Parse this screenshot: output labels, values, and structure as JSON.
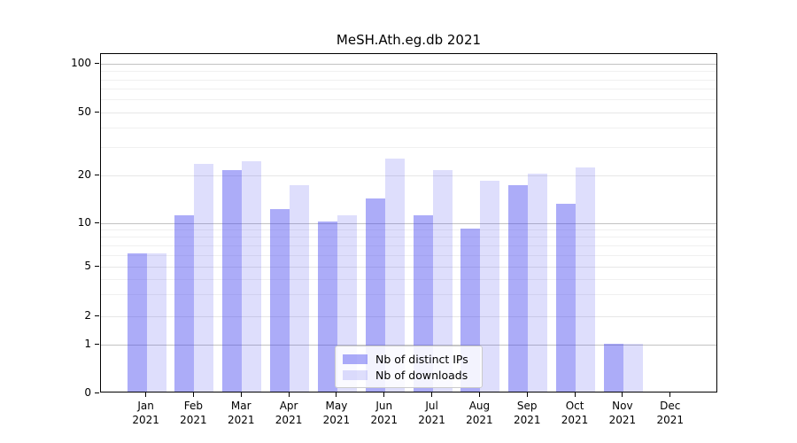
{
  "chart_data": {
    "type": "bar",
    "title": "MeSH.Ath.eg.db 2021",
    "categories": [
      "Jan",
      "Feb",
      "Mar",
      "Apr",
      "May",
      "Jun",
      "Jul",
      "Aug",
      "Sep",
      "Oct",
      "Nov",
      "Dec"
    ],
    "xtick_year": "2021",
    "series": [
      {
        "name": "Nb of distinct IPs",
        "color": "rgba(70,70,240,0.45)",
        "color_hex": "#a9a9f7",
        "values": [
          6,
          11,
          21,
          12,
          10,
          14,
          11,
          9,
          17,
          13,
          1,
          0
        ]
      },
      {
        "name": "Nb of downloads",
        "color": "rgba(70,70,240,0.18)",
        "color_hex": "#dadaf9",
        "values": [
          6,
          23,
          24,
          17,
          11,
          25,
          21,
          18,
          20,
          22,
          1,
          0
        ]
      }
    ],
    "yticks": [
      0,
      1,
      2,
      5,
      10,
      20,
      50,
      100
    ],
    "ylim": [
      0,
      100
    ],
    "yscale": "symlog",
    "grid": true,
    "minor_gridlines": [
      3,
      4,
      6,
      7,
      8,
      9,
      30,
      40,
      60,
      70,
      80,
      90
    ],
    "legend_position": "lower center"
  }
}
